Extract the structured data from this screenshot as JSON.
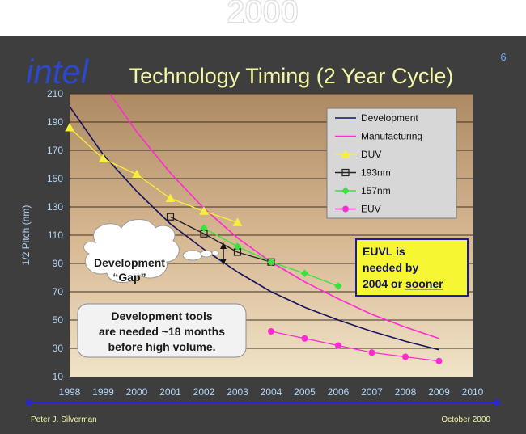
{
  "top_title": "2000",
  "slide_number": "6",
  "logo_text": "intel",
  "footer": {
    "author": "Peter J. Silverman",
    "date": "October 2000"
  },
  "colors": {
    "background": "#3e3e3e",
    "title": "#f4f7a6",
    "axis_text": "#b3d4f5",
    "development": "#14145f",
    "manufacturing": "#ff2ad2",
    "duv": "#f7f03a",
    "nm193": "#202020",
    "nm157": "#37e43a",
    "euv": "#ff2ad2",
    "callout_yellow": "#f6f632",
    "callout_border": "#1a1aa8",
    "timeline_blue": "#2828d0"
  },
  "annotations": {
    "gap_label_line1": "Development",
    "gap_label_line2": "“Gap”",
    "tools_line1": "Development tools",
    "tools_line2": "are needed ~18 months",
    "tools_line3": "before high volume.",
    "euvl_line1": "EUVL is",
    "euvl_line2": "needed by",
    "euvl_line3_prefix": "2004 or ",
    "euvl_line3_underlined": "sooner"
  },
  "chart_data": {
    "type": "line",
    "title": "Technology Timing (2 Year Cycle)",
    "xlabel": "",
    "ylabel": "1/2 Pitch (nm)",
    "xlim": [
      1998,
      2010
    ],
    "ylim": [
      10,
      210
    ],
    "x_ticks": [
      1998,
      1999,
      2000,
      2001,
      2002,
      2003,
      2004,
      2005,
      2006,
      2007,
      2008,
      2009,
      2010
    ],
    "y_ticks": [
      10,
      30,
      50,
      70,
      90,
      110,
      130,
      150,
      170,
      190,
      210
    ],
    "grid": "horizontal",
    "legend_position": "top-right",
    "series": [
      {
        "name": "Development",
        "style": "curve",
        "x": [
          1998,
          1999,
          2000,
          2001,
          2002,
          2003,
          2004,
          2005,
          2006,
          2007,
          2008,
          2009
        ],
        "y": [
          201,
          167,
          141,
          118,
          100,
          84,
          70,
          59,
          50,
          42,
          35,
          29
        ]
      },
      {
        "name": "Manufacturing",
        "style": "curve",
        "x": [
          1999.2,
          2000,
          2001,
          2002,
          2003,
          2004,
          2005,
          2006,
          2007,
          2008,
          2009
        ],
        "y": [
          210,
          183,
          154,
          129,
          108,
          91,
          77,
          65,
          54,
          45,
          37
        ]
      },
      {
        "name": "DUV",
        "style": "marker",
        "marker": "triangle",
        "x": [
          1998,
          1999,
          2000,
          2001,
          2002,
          2003
        ],
        "y": [
          186,
          164,
          153,
          136,
          127,
          119
        ]
      },
      {
        "name": "193nm",
        "style": "marker",
        "marker": "square",
        "x": [
          2001,
          2002,
          2003,
          2004
        ],
        "y": [
          123,
          111,
          98,
          91
        ]
      },
      {
        "name": "157nm",
        "style": "marker",
        "marker": "diamond",
        "x": [
          2002,
          2003,
          2004,
          2005,
          2006
        ],
        "y": [
          115,
          102,
          91,
          83,
          74
        ]
      },
      {
        "name": "EUV",
        "style": "marker",
        "marker": "circle",
        "x": [
          2004,
          2005,
          2006,
          2007,
          2008,
          2009
        ],
        "y": [
          42,
          37,
          32,
          27,
          24,
          21
        ]
      }
    ]
  }
}
